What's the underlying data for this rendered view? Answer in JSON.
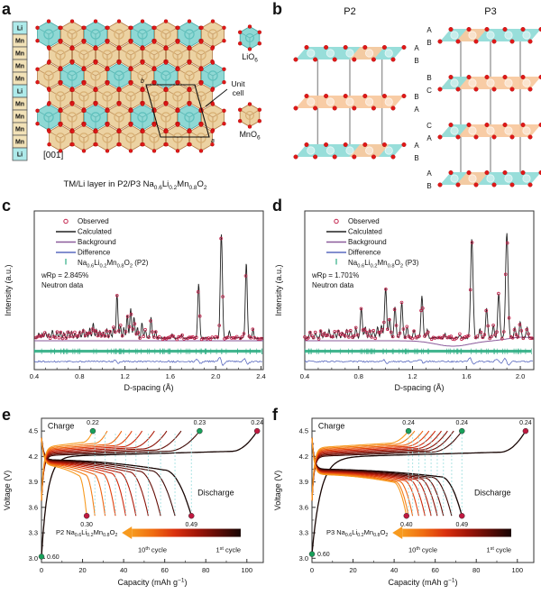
{
  "letters": {
    "a": "a",
    "b": "b",
    "c": "c",
    "d": "d",
    "e": "e",
    "f": "f"
  },
  "colors": {
    "hex_cyan": "#8fd8d4",
    "hex_cyan_stroke": "#46a8a4",
    "hex_cyan_inner": "#5fc0bc",
    "hex_tan": "#ecd2a2",
    "hex_tan_stroke": "#b07840",
    "hex_tan_inner": "#d8b074",
    "red_atom": "#e01818",
    "red_atom_stroke": "#a80808",
    "li_cell": "#aeeaea",
    "mn_cell": "#f2e2b8",
    "cell_border": "#555555",
    "slab_cyan": "#92dcd8",
    "slab_orange": "#f8c9a0",
    "slab_line": "#9a9a9a",
    "observed": "#c2204a",
    "calculated": "#222222",
    "background_line": "#8a5a9a",
    "difference": "#5a6abf",
    "bragg": "#2fae84",
    "dash": "#9fe0e0",
    "green_dot": "#18a05a",
    "crimson_dot": "#c01840",
    "grad": [
      "#170503",
      "#5c0c06",
      "#a01508",
      "#d92f0d",
      "#ef6a10",
      "#f79a1f"
    ],
    "axis": "#333333"
  },
  "panel_a": {
    "column": [
      "Li",
      "Mn",
      "Mn",
      "Mn",
      "Mn",
      "Li",
      "Mn",
      "Mn",
      "Mn",
      "Mn",
      "Li"
    ],
    "direction": "[001]",
    "unit_cell_lines": [
      "Unit",
      "cell"
    ],
    "axis_b": "b",
    "axis_a": "a",
    "lio6": [
      {
        "t": "LiO"
      },
      {
        "s": "6"
      }
    ],
    "mno6": [
      {
        "t": "MnO"
      },
      {
        "s": "6"
      }
    ],
    "caption": [
      {
        "t": "TM/Li layer in P2/P3 Na"
      },
      {
        "s": "0.6"
      },
      {
        "t": "Li"
      },
      {
        "s": "0.2"
      },
      {
        "t": "Mn"
      },
      {
        "s": "0.8"
      },
      {
        "t": "O"
      },
      {
        "s": "2"
      }
    ]
  },
  "panel_b": {
    "p2": {
      "title": "P2",
      "side": "right",
      "labels": [
        [
          "A",
          "B"
        ],
        [
          "B",
          "A"
        ],
        [
          "A",
          "B"
        ]
      ],
      "slabs": [
        {
          "base": "cyan",
          "seg": [
            0.55,
            0.8
          ],
          "segc": "orange"
        },
        {
          "base": "orange"
        },
        {
          "base": "cyan",
          "seg": [
            0.55,
            0.85
          ],
          "segc": "orange"
        }
      ]
    },
    "p3": {
      "title": "P3",
      "side": "left",
      "labels": [
        [
          "A",
          "B"
        ],
        [
          "B",
          "C"
        ],
        [
          "C",
          "A"
        ],
        [
          "A",
          "B"
        ]
      ],
      "slabs": [
        {
          "base": "cyan",
          "seg": [
            0.18,
            0.4
          ],
          "segc": "orange"
        },
        {
          "base": "orange",
          "seg": [
            0,
            0.2
          ],
          "segc": "cyan"
        },
        {
          "base": "orange",
          "seg": [
            0,
            0.2
          ],
          "segc": "cyan"
        },
        {
          "base": "cyan",
          "seg": [
            0.18,
            0.42
          ],
          "segc": "orange"
        }
      ]
    }
  },
  "chart_data": [
    {
      "panel": "c",
      "type": "xrd",
      "seed": 7,
      "legend": [
        "Observed",
        "Calculated",
        "Background",
        "Difference"
      ],
      "phase": [
        {
          "t": "Na"
        },
        {
          "s": "0.6"
        },
        {
          "t": "Li"
        },
        {
          "s": "0.2"
        },
        {
          "t": "Mn"
        },
        {
          "s": "0.8"
        },
        {
          "t": "O"
        },
        {
          "s": "2"
        },
        {
          "t": " (P2)"
        }
      ],
      "wrp": "wRp = 2.845%",
      "source": "Neutron data",
      "xlabel": "D-spacing (Å)",
      "ylabel": "Intensity (a.u.)",
      "x_range": [
        0.4,
        2.42
      ],
      "x_ticks": [
        0.4,
        0.8,
        1.2,
        1.6,
        2.0,
        2.4
      ],
      "bg_dip": false,
      "peaks": [
        [
          0.44,
          0.05
        ],
        [
          0.47,
          0.04
        ],
        [
          0.5,
          0.06
        ],
        [
          0.53,
          0.04
        ],
        [
          0.56,
          0.07
        ],
        [
          0.6,
          0.05
        ],
        [
          0.63,
          0.06
        ],
        [
          0.66,
          0.05
        ],
        [
          0.7,
          0.07
        ],
        [
          0.73,
          0.06
        ],
        [
          0.76,
          0.05
        ],
        [
          0.8,
          0.06
        ],
        [
          0.83,
          0.08
        ],
        [
          0.86,
          0.06
        ],
        [
          0.89,
          0.09
        ],
        [
          0.92,
          0.14
        ],
        [
          0.95,
          0.08
        ],
        [
          0.98,
          0.07
        ],
        [
          1.01,
          0.06
        ],
        [
          1.04,
          0.08
        ],
        [
          1.07,
          0.07
        ],
        [
          1.1,
          0.1
        ],
        [
          1.13,
          0.42
        ],
        [
          1.16,
          0.12
        ],
        [
          1.19,
          0.1
        ],
        [
          1.22,
          0.22
        ],
        [
          1.25,
          0.28
        ],
        [
          1.28,
          0.2
        ],
        [
          1.31,
          0.1
        ],
        [
          1.35,
          0.14
        ],
        [
          1.38,
          0.08
        ],
        [
          1.43,
          0.2
        ],
        [
          1.47,
          0.06
        ],
        [
          1.62,
          0.04
        ],
        [
          1.7,
          0.03
        ],
        [
          1.85,
          0.52
        ],
        [
          2.05,
          1.0
        ],
        [
          2.12,
          0.06
        ],
        [
          2.27,
          0.72
        ],
        [
          2.33,
          0.08
        ]
      ]
    },
    {
      "panel": "d",
      "type": "xrd",
      "seed": 13,
      "legend": [
        "Observed",
        "Calculated",
        "Background",
        "Difference"
      ],
      "phase": [
        {
          "t": "Na"
        },
        {
          "s": "0.6"
        },
        {
          "t": "Li"
        },
        {
          "s": "0.2"
        },
        {
          "t": "Mn"
        },
        {
          "s": "0.8"
        },
        {
          "t": "O"
        },
        {
          "s": "2"
        },
        {
          "t": " (P3)"
        }
      ],
      "wrp": "wRp = 1.701%",
      "source": "Neutron data",
      "xlabel": "D-spacing (Å)",
      "ylabel": "Intensity (a.u.)",
      "x_range": [
        0.4,
        2.1
      ],
      "x_ticks": [
        0.4,
        0.8,
        1.2,
        1.6,
        2.0
      ],
      "bg_dip": true,
      "peaks": [
        [
          0.44,
          0.06
        ],
        [
          0.48,
          0.05
        ],
        [
          0.52,
          0.07
        ],
        [
          0.55,
          0.05
        ],
        [
          0.58,
          0.08
        ],
        [
          0.62,
          0.06
        ],
        [
          0.65,
          0.07
        ],
        [
          0.68,
          0.06
        ],
        [
          0.71,
          0.08
        ],
        [
          0.74,
          0.07
        ],
        [
          0.78,
          0.09
        ],
        [
          0.82,
          0.28
        ],
        [
          0.85,
          0.1
        ],
        [
          0.88,
          0.08
        ],
        [
          0.91,
          0.07
        ],
        [
          0.94,
          0.1
        ],
        [
          0.97,
          0.12
        ],
        [
          1.0,
          0.48
        ],
        [
          1.03,
          0.18
        ],
        [
          1.07,
          0.3
        ],
        [
          1.12,
          0.34
        ],
        [
          1.16,
          0.1
        ],
        [
          1.21,
          0.08
        ],
        [
          1.27,
          0.4
        ],
        [
          1.31,
          0.08
        ],
        [
          1.44,
          0.04
        ],
        [
          1.55,
          0.03
        ],
        [
          1.64,
          0.95
        ],
        [
          1.7,
          0.08
        ],
        [
          1.75,
          0.28
        ],
        [
          1.8,
          0.12
        ],
        [
          1.84,
          0.42
        ],
        [
          1.9,
          1.0
        ],
        [
          1.96,
          0.1
        ],
        [
          2.0,
          0.16
        ],
        [
          2.05,
          0.1
        ]
      ]
    },
    {
      "panel": "e",
      "type": "cycles",
      "charge_label": "Charge",
      "discharge_label": "Discharge",
      "sample_label": [
        {
          "t": "P2 Na"
        },
        {
          "s": "0.6"
        },
        {
          "t": "Li"
        },
        {
          "s": "0.2"
        },
        {
          "t": "Mn"
        },
        {
          "s": "0.8"
        },
        {
          "t": "O"
        },
        {
          "s": "2"
        }
      ],
      "cycle_from": [
        {
          "t": "10"
        },
        {
          "p": "th"
        },
        {
          "t": " cycle"
        }
      ],
      "cycle_to": [
        {
          "t": "1"
        },
        {
          "p": "st"
        },
        {
          "t": " cycle"
        }
      ],
      "xlabel": [
        {
          "t": "Capacity (mAh g"
        },
        {
          "p": "−1"
        },
        {
          "t": ")"
        }
      ],
      "ylabel": "Voltage (V)",
      "x_ticks": [
        0,
        20,
        40,
        60,
        80,
        100
      ],
      "y_ticks": [
        "3.0",
        "3.3",
        "3.6",
        "3.9",
        "4.2",
        "4.5"
      ],
      "charge_capacities": [
        105,
        77,
        68,
        61,
        55,
        49,
        44,
        39,
        32,
        25
      ],
      "discharge_capacities": [
        73,
        65,
        58,
        52,
        46,
        41,
        36,
        31,
        26,
        22
      ],
      "charge_plateau": 4.2,
      "discharge_plateau": 4.16,
      "first_start_v": 3.02,
      "dashes": [
        26,
        31,
        36,
        41,
        46,
        52,
        58,
        65,
        73
      ],
      "ann_top": [
        {
          "x": 25,
          "label": "0.22",
          "c": "green"
        },
        {
          "x": 77,
          "label": "0.23",
          "c": "green"
        },
        {
          "x": 105,
          "label": "0.24",
          "c": "crimson"
        }
      ],
      "ann_bottom": [
        {
          "x": 22,
          "v": 3.5,
          "label": "0.30",
          "c": "crimson"
        },
        {
          "x": 73,
          "v": 3.5,
          "label": "0.49",
          "c": "crimson"
        },
        {
          "x": 0,
          "v": 3.02,
          "label": "0.60",
          "c": "green"
        }
      ]
    },
    {
      "panel": "f",
      "type": "cycles",
      "charge_label": "Charge",
      "discharge_label": "Discharge",
      "sample_label": [
        {
          "t": "P3 Na"
        },
        {
          "s": "0.6"
        },
        {
          "t": "Li"
        },
        {
          "s": "0.2"
        },
        {
          "t": "Mn"
        },
        {
          "s": "0.8"
        },
        {
          "t": "O"
        },
        {
          "s": "2"
        }
      ],
      "cycle_from": [
        {
          "t": "10"
        },
        {
          "p": "th"
        },
        {
          "t": " cycle"
        }
      ],
      "cycle_to": [
        {
          "t": "1"
        },
        {
          "p": "st"
        },
        {
          "t": " cycle"
        }
      ],
      "xlabel": [
        {
          "t": "Capacity (mAh g"
        },
        {
          "p": "−1"
        },
        {
          "t": ")"
        }
      ],
      "ylabel": "Voltage (V)",
      "x_ticks": [
        0,
        20,
        40,
        60,
        80,
        100
      ],
      "y_ticks": [
        "3.0",
        "3.3",
        "3.6",
        "3.9",
        "4.2",
        "4.5"
      ],
      "charge_capacities": [
        104,
        73,
        69,
        66,
        63,
        60,
        57,
        54,
        50,
        47
      ],
      "discharge_capacities": [
        73,
        68,
        64,
        61,
        58,
        55,
        52,
        49,
        47,
        46
      ],
      "charge_plateau": 4.19,
      "discharge_plateau": 4.05,
      "first_start_v": 3.05,
      "dashes": [
        47,
        49,
        52,
        55,
        58,
        61,
        64,
        68,
        73
      ],
      "ann_top": [
        {
          "x": 47,
          "label": "0.24",
          "c": "green"
        },
        {
          "x": 73,
          "label": "0.24",
          "c": "green"
        },
        {
          "x": 104,
          "label": "0.24",
          "c": "crimson"
        }
      ],
      "ann_bottom": [
        {
          "x": 46,
          "v": 3.5,
          "label": "0.40",
          "c": "crimson"
        },
        {
          "x": 73,
          "v": 3.5,
          "label": "0.49",
          "c": "crimson"
        },
        {
          "x": 0,
          "v": 3.05,
          "label": "0.60",
          "c": "green"
        }
      ]
    }
  ]
}
